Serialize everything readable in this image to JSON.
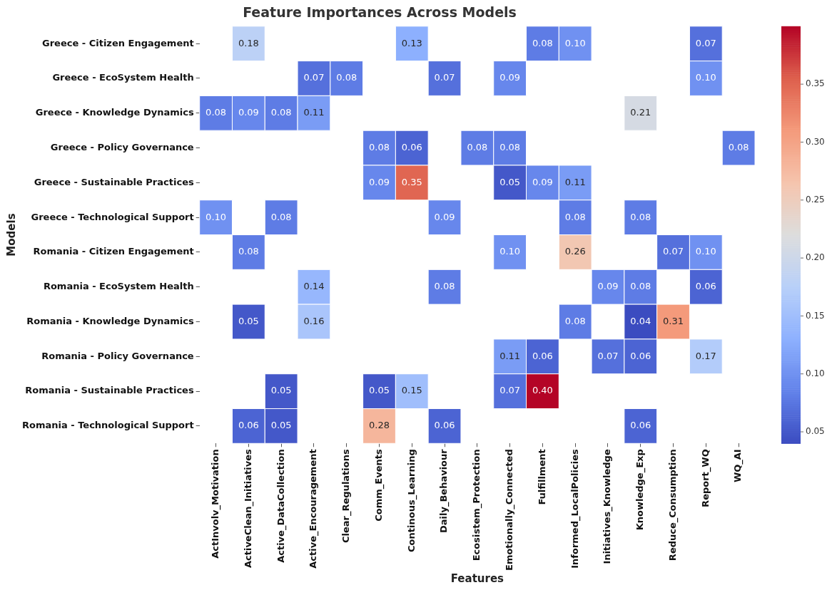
{
  "chart_data": {
    "type": "heatmap",
    "title": "Feature Importances Across Models",
    "xlabel": "Features",
    "ylabel": "Models",
    "categories": [
      "ActInvolv_Motivation",
      "ActiveClean_Initiatives",
      "Active_DataCollection",
      "Active_Encouragement",
      "Clear_Regulations",
      "Comm_Events",
      "Continous_Learning",
      "Daily_Behaviour",
      "Ecosistem_Protection",
      "Emotionally_Connected",
      "Fulfillment",
      "Informed_LocalPolicies",
      "Initiatives_Knowledge",
      "Knowledge_Exp",
      "Reduce_Consumption",
      "Report_WQ",
      "WQ_AI"
    ],
    "y_categories": [
      "Greece - Citizen Engagement",
      "Greece - EcoSystem Health",
      "Greece - Knowledge Dynamics",
      "Greece - Policy Governance",
      "Greece - Sustainable Practices",
      "Greece - Technological Support",
      "Romania - Citizen Engagement",
      "Romania - EcoSystem Health",
      "Romania - Knowledge Dynamics",
      "Romania - Policy Governance",
      "Romania - Sustainable Practices",
      "Romania - Technological Support"
    ],
    "cells": [
      [
        null,
        0.18,
        null,
        null,
        null,
        null,
        0.13,
        null,
        null,
        null,
        0.08,
        0.1,
        null,
        null,
        null,
        0.07,
        null
      ],
      [
        null,
        null,
        null,
        0.07,
        0.08,
        null,
        null,
        0.07,
        null,
        0.09,
        null,
        null,
        null,
        null,
        null,
        0.1,
        null
      ],
      [
        0.08,
        0.09,
        0.08,
        0.11,
        null,
        null,
        null,
        null,
        null,
        null,
        null,
        null,
        null,
        0.21,
        null,
        null,
        null
      ],
      [
        null,
        null,
        null,
        null,
        null,
        0.08,
        0.06,
        null,
        0.08,
        0.08,
        null,
        null,
        null,
        null,
        null,
        null,
        0.08
      ],
      [
        null,
        null,
        null,
        null,
        null,
        0.09,
        0.35,
        null,
        null,
        0.05,
        0.09,
        0.11,
        null,
        null,
        null,
        null,
        null
      ],
      [
        0.1,
        null,
        0.08,
        null,
        null,
        null,
        null,
        0.09,
        null,
        null,
        null,
        0.08,
        null,
        0.08,
        null,
        null,
        null
      ],
      [
        null,
        0.08,
        null,
        null,
        null,
        null,
        null,
        null,
        null,
        0.1,
        null,
        0.26,
        null,
        null,
        0.07,
        0.1,
        null
      ],
      [
        null,
        null,
        null,
        0.14,
        null,
        null,
        null,
        0.08,
        null,
        null,
        null,
        null,
        0.09,
        0.08,
        null,
        0.06,
        null
      ],
      [
        null,
        0.05,
        null,
        0.16,
        null,
        null,
        null,
        null,
        null,
        null,
        null,
        0.08,
        null,
        0.04,
        0.31,
        null,
        null
      ],
      [
        null,
        null,
        null,
        null,
        null,
        null,
        null,
        null,
        null,
        0.11,
        0.06,
        null,
        0.07,
        0.06,
        null,
        0.17,
        null
      ],
      [
        null,
        null,
        0.05,
        null,
        null,
        0.05,
        0.15,
        null,
        null,
        0.07,
        0.4,
        null,
        null,
        null,
        null,
        null,
        null
      ],
      [
        null,
        0.06,
        0.05,
        null,
        null,
        0.28,
        null,
        0.06,
        null,
        null,
        null,
        null,
        null,
        0.06,
        null,
        null,
        null
      ]
    ],
    "cell_labels": [
      [
        null,
        "0.18",
        null,
        null,
        null,
        null,
        "0.13",
        null,
        null,
        null,
        "0.08",
        "0.10",
        null,
        null,
        null,
        "0.07",
        null
      ],
      [
        null,
        null,
        null,
        "0.07",
        "0.08",
        null,
        null,
        "0.07",
        null,
        "0.09",
        null,
        null,
        null,
        null,
        null,
        "0.10",
        null
      ],
      [
        "0.08",
        "0.09",
        "0.08",
        "0.11",
        null,
        null,
        null,
        null,
        null,
        null,
        null,
        null,
        null,
        "0.21",
        null,
        null,
        null
      ],
      [
        null,
        null,
        null,
        null,
        null,
        "0.08",
        "0.06",
        null,
        "0.08",
        "0.08",
        null,
        null,
        null,
        null,
        null,
        null,
        "0.08"
      ],
      [
        null,
        null,
        null,
        null,
        null,
        "0.09",
        "0.35",
        null,
        null,
        "0.05",
        "0.09",
        "0.11",
        null,
        null,
        null,
        null,
        null
      ],
      [
        "0.10",
        null,
        "0.08",
        null,
        null,
        null,
        null,
        "0.09",
        null,
        null,
        null,
        "0.08",
        null,
        "0.08",
        null,
        null,
        null
      ],
      [
        null,
        "0.08",
        null,
        null,
        null,
        null,
        null,
        null,
        null,
        "0.10",
        null,
        "0.26",
        null,
        null,
        "0.07",
        "0.10",
        null
      ],
      [
        null,
        null,
        null,
        "0.14",
        null,
        null,
        null,
        "0.08",
        null,
        null,
        null,
        null,
        "0.09",
        "0.08",
        null,
        "0.06",
        null
      ],
      [
        null,
        "0.05",
        null,
        "0.16",
        null,
        null,
        null,
        null,
        null,
        null,
        null,
        "0.08",
        null,
        "0.04",
        "0.31",
        null,
        null
      ],
      [
        null,
        null,
        null,
        null,
        null,
        null,
        null,
        null,
        null,
        "0.11",
        "0.06",
        null,
        "0.07",
        "0.06",
        null,
        "0.17",
        null
      ],
      [
        null,
        null,
        "0.05",
        null,
        null,
        "0.05",
        "0.15",
        null,
        null,
        "0.07",
        "0.40",
        null,
        null,
        null,
        null,
        null,
        null
      ],
      [
        null,
        "0.06",
        "0.05",
        null,
        null,
        "0.28",
        null,
        "0.06",
        null,
        null,
        null,
        null,
        null,
        "0.06",
        null,
        null,
        null
      ]
    ],
    "clim": [
      0.04,
      0.4
    ],
    "cticks": [
      {
        "value": 0.05,
        "label": "0.05"
      },
      {
        "value": 0.1,
        "label": "0.10"
      },
      {
        "value": 0.15,
        "label": "0.15"
      },
      {
        "value": 0.2,
        "label": "0.20"
      },
      {
        "value": 0.25,
        "label": "0.25"
      },
      {
        "value": 0.3,
        "label": "0.30"
      },
      {
        "value": 0.35,
        "label": "0.35"
      }
    ],
    "legend": false
  }
}
